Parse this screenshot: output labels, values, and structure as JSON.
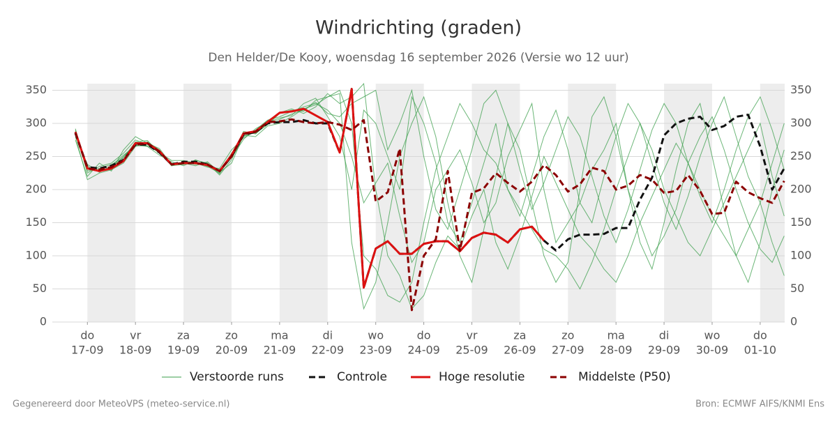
{
  "chart_data": {
    "type": "line",
    "title": "Windrichting (graden)",
    "subtitle": "Den Helder/De Kooy, woensdag 16 september 2026 (Versie wo 12 uur)",
    "footer_left": "Gegenereerd door MeteoVPS (meteo-service.nl)",
    "footer_right": "Bron: ECMWF AIFS/KNMI Ens",
    "xlim": [
      -0.73,
      14.51
    ],
    "ylim": [
      0,
      360
    ],
    "yticks": [
      0,
      50,
      100,
      150,
      200,
      250,
      300,
      350
    ],
    "grid": true,
    "xticks": [
      {
        "value": 0,
        "day": "do",
        "date": "17-09"
      },
      {
        "value": 1,
        "day": "vr",
        "date": "18-09"
      },
      {
        "value": 2,
        "day": "za",
        "date": "19-09"
      },
      {
        "value": 3,
        "day": "zo",
        "date": "20-09"
      },
      {
        "value": 4,
        "day": "ma",
        "date": "21-09"
      },
      {
        "value": 5,
        "day": "di",
        "date": "22-09"
      },
      {
        "value": 6,
        "day": "wo",
        "date": "23-09"
      },
      {
        "value": 7,
        "day": "do",
        "date": "24-09"
      },
      {
        "value": 8,
        "day": "vr",
        "date": "25-09"
      },
      {
        "value": 9,
        "day": "za",
        "date": "26-09"
      },
      {
        "value": 10,
        "day": "zo",
        "date": "27-09"
      },
      {
        "value": 11,
        "day": "ma",
        "date": "28-09"
      },
      {
        "value": 12,
        "day": "di",
        "date": "29-09"
      },
      {
        "value": 13,
        "day": "wo",
        "date": "30-09"
      },
      {
        "value": 14,
        "day": "do",
        "date": "01-10"
      }
    ],
    "x": [
      -0.25,
      0,
      0.25,
      0.5,
      0.75,
      1,
      1.25,
      1.5,
      1.75,
      2,
      2.25,
      2.5,
      2.75,
      3,
      3.25,
      3.5,
      3.75,
      4,
      4.25,
      4.5,
      4.75,
      5,
      5.25,
      5.5,
      5.75,
      6,
      6.25,
      6.5,
      6.75,
      7,
      7.25,
      7.5,
      7.75,
      8,
      8.25,
      8.5,
      8.75,
      9,
      9.25,
      9.5,
      9.75,
      10,
      10.25,
      10.5,
      10.75,
      11,
      11.25,
      11.5,
      11.75,
      12,
      12.25,
      12.5,
      12.75,
      13,
      13.25,
      13.5,
      13.75,
      14,
      14.25,
      14.5
    ],
    "ensemble": {
      "name": "Verstoorde runs",
      "color": "#3a9e4a",
      "runs": [
        [
          290,
          225,
          235,
          240,
          255,
          275,
          268,
          255,
          240,
          238,
          242,
          235,
          225,
          255,
          280,
          290,
          305,
          310,
          318,
          325,
          330,
          320,
          300,
          250,
          180,
          210,
          240,
          160,
          90,
          120,
          200,
          230,
          260,
          210,
          150,
          180,
          250,
          290,
          330,
          200,
          120,
          150,
          180,
          230,
          260,
          300,
          200,
          150,
          100,
          130,
          170,
          240,
          280,
          310,
          260,
          200,
          150,
          110,
          90,
          130
        ],
        [
          280,
          215,
          225,
          230,
          240,
          265,
          272,
          260,
          236,
          242,
          238,
          240,
          222,
          245,
          286,
          285,
          298,
          315,
          320,
          318,
          335,
          340,
          345,
          120,
          20,
          60,
          150,
          250,
          300,
          340,
          280,
          180,
          100,
          60,
          140,
          220,
          300,
          260,
          180,
          100,
          60,
          90,
          200,
          310,
          340,
          280,
          200,
          120,
          80,
          150,
          230,
          300,
          330,
          250,
          170,
          100,
          60,
          120,
          200,
          260
        ],
        [
          288,
          235,
          228,
          232,
          250,
          268,
          265,
          252,
          242,
          236,
          245,
          238,
          230,
          248,
          276,
          292,
          302,
          308,
          312,
          330,
          338,
          310,
          280,
          200,
          320,
          300,
          250,
          200,
          340,
          300,
          240,
          150,
          120,
          180,
          240,
          300,
          200,
          160,
          220,
          280,
          320,
          260,
          180,
          150,
          220,
          280,
          330,
          300,
          240,
          180,
          140,
          190,
          250,
          300,
          340,
          280,
          220,
          180,
          240,
          300
        ],
        [
          275,
          220,
          240,
          228,
          260,
          280,
          270,
          262,
          238,
          240,
          236,
          242,
          226,
          240,
          282,
          280,
          296,
          300,
          310,
          322,
          328,
          340,
          350,
          300,
          100,
          80,
          40,
          30,
          60,
          150,
          230,
          280,
          330,
          300,
          260,
          240,
          200,
          170,
          140,
          110,
          100,
          80,
          50,
          90,
          140,
          200,
          250,
          300,
          260,
          200,
          160,
          120,
          100,
          140,
          180,
          220,
          260,
          300,
          220,
          160
        ],
        [
          292,
          228,
          232,
          238,
          248,
          272,
          274,
          256,
          244,
          244,
          240,
          234,
          232,
          260,
          278,
          288,
          304,
          316,
          322,
          315,
          325,
          345,
          330,
          340,
          360,
          200,
          100,
          70,
          20,
          40,
          90,
          130,
          110,
          160,
          200,
          120,
          80,
          130,
          190,
          250,
          210,
          170,
          130,
          110,
          80,
          60,
          100,
          150,
          190,
          230,
          270,
          240,
          200,
          160,
          130,
          100,
          140,
          180,
          120,
          70
        ],
        [
          284,
          238,
          226,
          236,
          252,
          266,
          266,
          258,
          236,
          238,
          244,
          240,
          224,
          252,
          288,
          284,
          300,
          306,
          314,
          320,
          332,
          315,
          310,
          330,
          340,
          350,
          260,
          300,
          350,
          250,
          170,
          140,
          200,
          260,
          330,
          350,
          300,
          230,
          170,
          210,
          260,
          310,
          280,
          220,
          160,
          120,
          170,
          230,
          290,
          330,
          300,
          240,
          190,
          150,
          200,
          260,
          310,
          340,
          290,
          230
        ]
      ]
    },
    "series": [
      {
        "name": "Controle",
        "color": "#111111",
        "style": "dashed",
        "values": [
          285,
          234,
          232,
          236,
          245,
          268,
          268,
          256,
          238,
          242,
          242,
          238,
          228,
          250,
          283,
          287,
          300,
          302,
          302,
          305,
          300,
          300,
          256,
          352,
          52,
          111,
          122,
          103,
          103,
          118,
          122,
          122,
          107,
          127,
          135,
          132,
          120,
          140,
          144,
          123,
          108,
          125,
          132,
          132,
          133,
          142,
          142,
          185,
          218,
          282,
          300,
          307,
          310,
          290,
          296,
          310,
          313,
          265,
          200,
          232
        ]
      },
      {
        "name": "Hoge resolutie",
        "color": "#dd1111",
        "style": "solid",
        "values": [
          287,
          232,
          228,
          232,
          243,
          270,
          270,
          258,
          238,
          240,
          240,
          237,
          228,
          252,
          285,
          288,
          302,
          316,
          318,
          322,
          312,
          302,
          256,
          352,
          52,
          111,
          122,
          103,
          103,
          118,
          122,
          122,
          107,
          127,
          135,
          132,
          120,
          140,
          144,
          123,
          null,
          null,
          null,
          null,
          null,
          null,
          null,
          null,
          null,
          null,
          null,
          null,
          null,
          null,
          null,
          null,
          null,
          null,
          null,
          null
        ]
      },
      {
        "name": "Middelste (P50)",
        "color": "#8b0000",
        "style": "dashed",
        "values": [
          286,
          232,
          230,
          234,
          244,
          268,
          270,
          257,
          238,
          240,
          240,
          238,
          228,
          250,
          284,
          287,
          302,
          303,
          306,
          302,
          300,
          302,
          298,
          290,
          305,
          182,
          196,
          262,
          18,
          100,
          125,
          228,
          108,
          195,
          202,
          225,
          210,
          197,
          212,
          237,
          222,
          197,
          208,
          233,
          228,
          200,
          206,
          222,
          215,
          195,
          198,
          222,
          198,
          163,
          165,
          212,
          196,
          187,
          180,
          213
        ]
      }
    ]
  }
}
